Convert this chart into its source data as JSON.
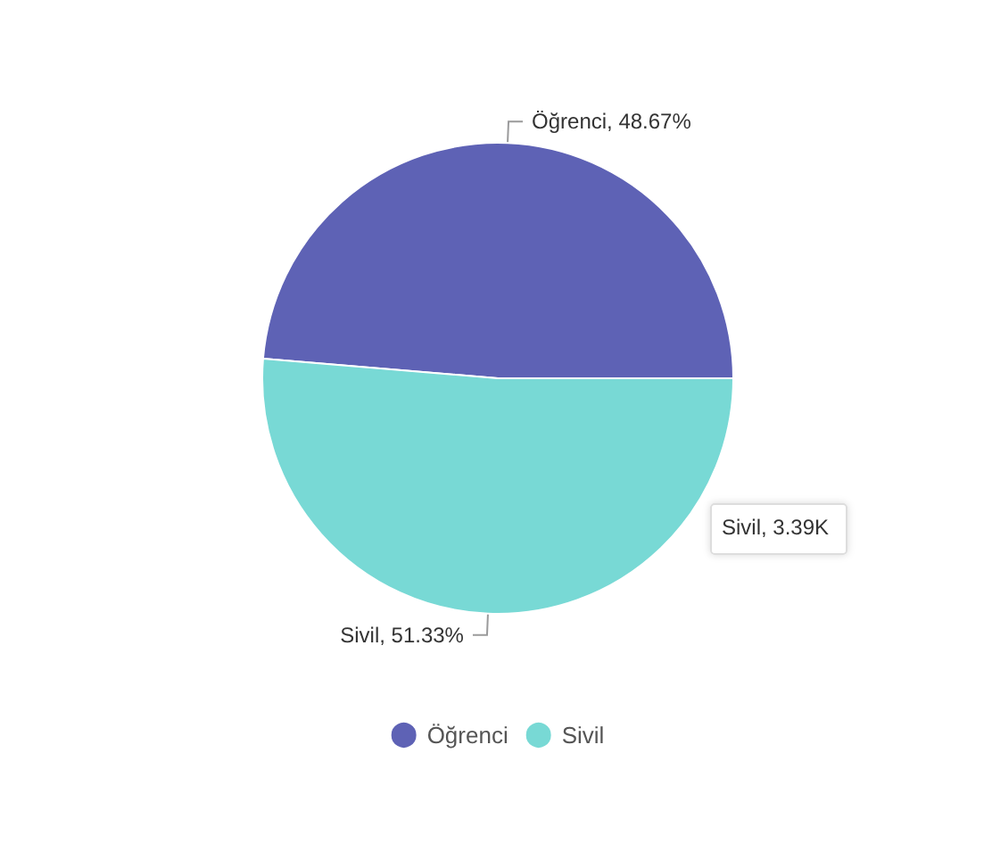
{
  "chart_data": {
    "type": "pie",
    "categories": [
      "Öğrenci",
      "Sivil"
    ],
    "values": [
      48.67,
      51.33
    ],
    "colors": [
      "#5e62b5",
      "#78d9d5"
    ],
    "value_labels": [
      "Öğrenci, 48.67%",
      "Sivil, 51.33%"
    ],
    "legend": "bottom",
    "annotations": [
      "Sivil, 3.39K"
    ]
  }
}
